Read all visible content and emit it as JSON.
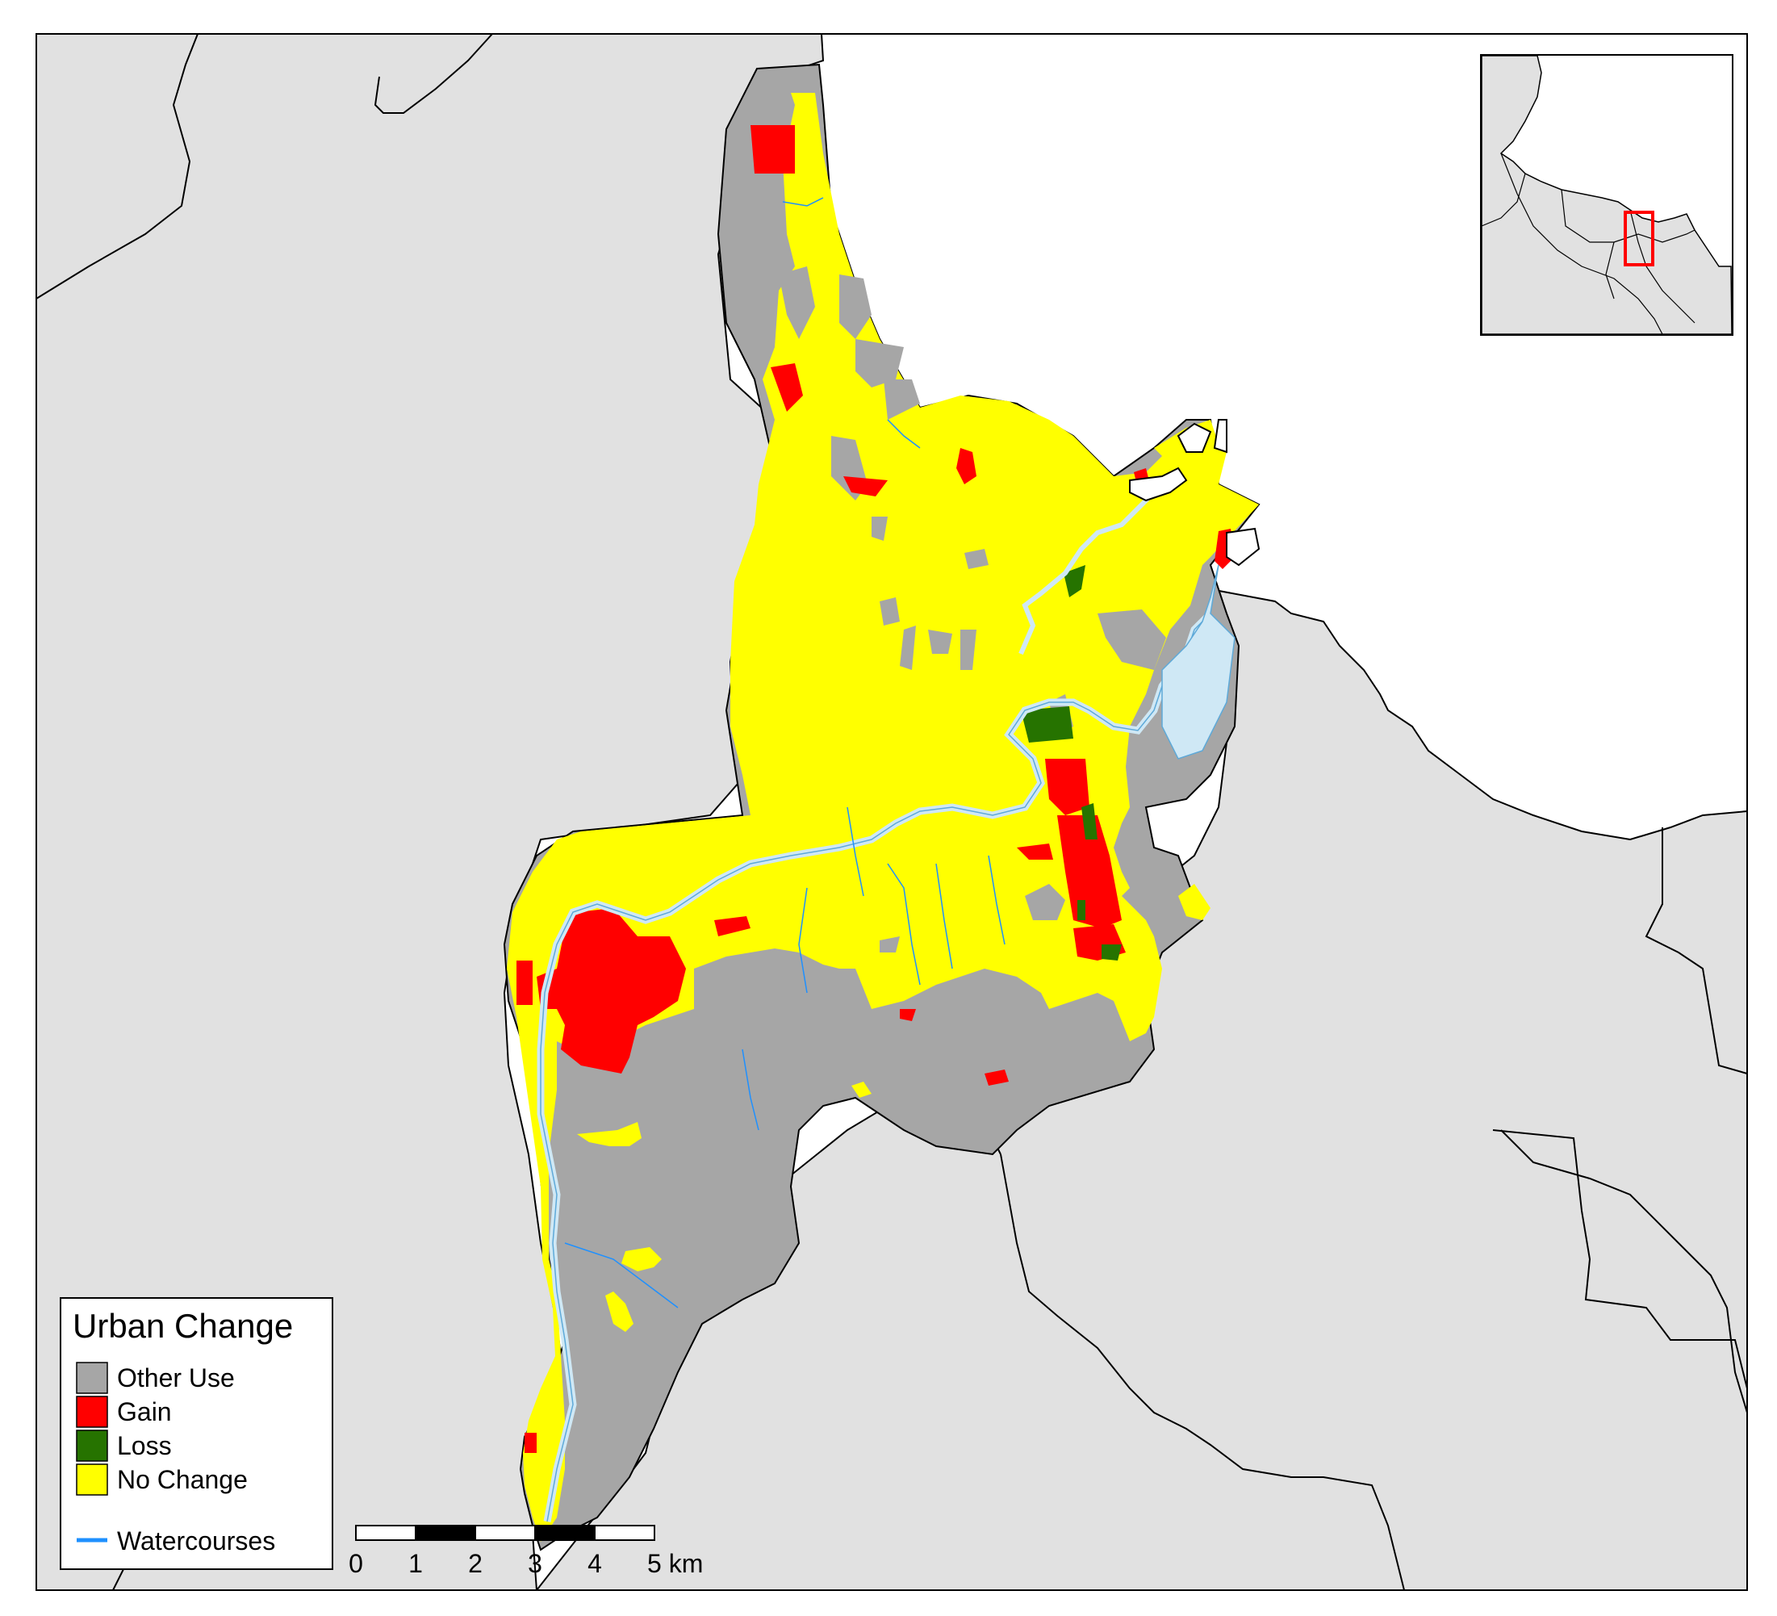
{
  "legend": {
    "title": "Urban Change",
    "items": [
      {
        "label": "Other Use",
        "color": "#a6a6a6"
      },
      {
        "label": "Gain",
        "color": "#ff0000"
      },
      {
        "label": "Loss",
        "color": "#267300"
      },
      {
        "label": "No Change",
        "color": "#ffff00"
      }
    ],
    "watercourses": {
      "label": "Watercourses",
      "color": "#1e90ff"
    }
  },
  "scale_bar": {
    "ticks": [
      "0",
      "1",
      "2",
      "3",
      "4",
      "5 km"
    ]
  },
  "colors": {
    "land": "#e1e1e1",
    "sea": "#ffffff",
    "river": "#cfe8f5",
    "inset_box": "#ff0000"
  }
}
